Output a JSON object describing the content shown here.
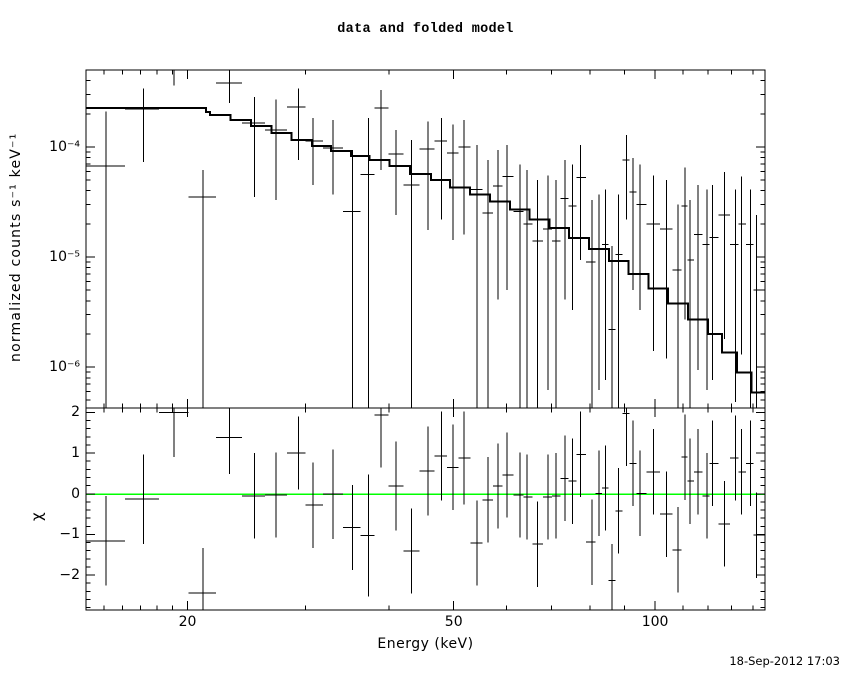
{
  "title": "data and folded model",
  "timestamp": "18-Sep-2012 17:03",
  "colors": {
    "foreground": "#000000",
    "background": "#ffffff",
    "model_line": "#000000",
    "zero_line": "#00ff00"
  },
  "x_axis": {
    "label": "Energy (keV)",
    "scale": "log",
    "lim": [
      14.1,
      146.0
    ],
    "major_ticks": [
      {
        "v": 20,
        "label": "20"
      },
      {
        "v": 50,
        "label": "50"
      },
      {
        "v": 100,
        "label": "100"
      }
    ],
    "minor_ticks": [
      15,
      16,
      17,
      18,
      19,
      30,
      40,
      60,
      70,
      80,
      90,
      110,
      120,
      130,
      140
    ]
  },
  "top_panel": {
    "ylabel": "normalized counts s⁻¹ keV⁻¹",
    "scale": "log",
    "lim": [
      4.25e-07,
      0.0005
    ],
    "major_ticks": [
      {
        "v": 0.0001,
        "label": "10⁻⁴"
      },
      {
        "v": 1e-05,
        "label": "10⁻⁵"
      },
      {
        "v": 1e-06,
        "label": "10⁻⁶"
      }
    ]
  },
  "bottom_panel": {
    "ylabel": "χ",
    "scale": "linear",
    "lim": [
      -2.86,
      2.11
    ],
    "major_ticks": [
      {
        "v": 2,
        "label": "2"
      },
      {
        "v": 1,
        "label": "1"
      },
      {
        "v": 0,
        "label": "0"
      },
      {
        "v": -1,
        "label": "−1"
      },
      {
        "v": -2,
        "label": "−2"
      }
    ],
    "minor_step": 0.2,
    "zero_line": 0
  },
  "chart_data": [
    {
      "type": "scatter",
      "name": "spectrum-data-with-folded-model",
      "x_scale": "log",
      "y_scale": "log",
      "xlim": [
        14.1,
        146.0
      ],
      "ylim": [
        4.25e-07,
        0.0005
      ],
      "energies_keV": [
        15.1,
        17.2,
        19.1,
        21.1,
        23.1,
        25.2,
        27.1,
        29.3,
        30.8,
        33.0,
        35.3,
        37.3,
        38.9,
        41.0,
        43.2,
        45.8,
        47.9,
        49.9,
        51.8,
        54.2,
        56.3,
        58.2,
        60.1,
        62.8,
        64.4,
        66.7,
        69.2,
        71.1,
        73.3,
        75.3,
        77.3,
        80.5,
        82.4,
        84.3,
        86.2,
        88.2,
        90.6,
        92.7,
        94.9,
        99.4,
        104.1,
        108.3,
        110.9,
        112.8,
        115.9,
        119.5,
        121.9,
        127.0,
        131.9,
        134.6,
        138.8,
        141.7
      ],
      "counts": [
        6.7e-05,
        0.00022,
        0.0005,
        3.5e-05,
        0.00038,
        0.000165,
        0.000143,
        0.00023,
        0.000113,
        9.8e-05,
        2.6e-05,
        5.6e-05,
        0.000226,
        8.6e-05,
        4.5e-05,
        9.6e-05,
        0.000113,
        8.8e-05,
        0.0001,
        4.1e-05,
        2.5e-05,
        4.4e-05,
        5.4e-05,
        2.6e-05,
        2e-05,
        1.4e-05,
        1.8e-05,
        1.4e-05,
        3.4e-05,
        2.9e-05,
        5.3e-05,
        9e-06,
        1.2e-05,
        1.3e-05,
        2.2e-06,
        1.05e-05,
        7.6e-05,
        3.9e-05,
        3e-05,
        2e-05,
        1.8e-05,
        7.6e-06,
        2.9e-05,
        9.4e-06,
        1.6e-05,
        1.3e-05,
        1.5e-05,
        2.4e-05,
        1.3e-05,
        2e-05,
        1.3e-05,
        5e-06
      ],
      "counts_err_hi": [
        0.00021,
        0.00034,
        0.0005,
        6.2e-05,
        0.0005,
        0.000285,
        0.00027,
        0.00034,
        0.000184,
        0.000176,
        9.4e-05,
        0.000184,
        0.00033,
        0.000143,
        0.000116,
        0.00017,
        0.000184,
        0.00016,
        0.000176,
        0.000104,
        7.6e-05,
        9.4e-05,
        0.000104,
        6.9e-05,
        6.2e-05,
        5e-05,
        5.5e-05,
        5e-05,
        7.6e-05,
        6.9e-05,
        0.000104,
        3.3e-05,
        3.7e-05,
        4.1e-05,
        1.26e-05,
        3.7e-05,
        0.000129,
        7.9e-05,
        6.9e-05,
        5.5e-05,
        5e-05,
        3e-05,
        6.5e-05,
        3.3e-05,
        4.5e-05,
        4.1e-05,
        4.5e-05,
        5.9e-05,
        4.1e-05,
        5.4e-05,
        4.1e-05,
        2.4e-05
      ],
      "counts_err_lo": [
        4e-07,
        7.3e-05,
        0.00036,
        4e-07,
        0.00025,
        3.5e-05,
        3.3e-05,
        7.6e-05,
        4.5e-05,
        3.7e-05,
        4e-07,
        4e-07,
        6.2e-05,
        2.4e-05,
        4e-07,
        1.76e-05,
        2.2e-05,
        1.43e-05,
        1.6e-05,
        4e-07,
        4e-07,
        4.1e-06,
        5e-06,
        4e-07,
        4e-07,
        4e-07,
        6.2e-07,
        4e-07,
        4.1e-06,
        3.3e-06,
        9.4e-06,
        4e-07,
        6.2e-07,
        7.6e-07,
        4e-07,
        4e-07,
        2.2e-05,
        5e-06,
        3.3e-06,
        1.4e-06,
        1.2e-06,
        4e-07,
        2.7e-06,
        4e-07,
        9.4e-07,
        6.2e-07,
        7.6e-07,
        1.8e-06,
        4.8e-07,
        1.3e-06,
        4e-07,
        4e-07
      ],
      "model_step_edges_keV": [
        14.1,
        21.3,
        21.6,
        23.2,
        24.9,
        26.7,
        28.6,
        30.7,
        32.8,
        35.1,
        37.4,
        40.1,
        43.0,
        46.2,
        49.4,
        52.9,
        56.7,
        60.7,
        64.9,
        69.5,
        74.4,
        79.7,
        85.3,
        91.3,
        97.7,
        104.6,
        112.0,
        119.9,
        125.9,
        132.5,
        139.4,
        146.0
      ],
      "model_values": [
        0.000226,
        0.000208,
        0.000195,
        0.000176,
        0.000155,
        0.000134,
        0.000116,
        0.000102,
        9.2e-05,
        8.3e-05,
        7.6e-05,
        6.7e-05,
        5.7e-05,
        5e-05,
        4.3e-05,
        3.7e-05,
        3.2e-05,
        2.7e-05,
        2.2e-05,
        1.83e-05,
        1.49e-05,
        1.18e-05,
        9.2e-06,
        7e-06,
        5.2e-06,
        3.8e-06,
        2.7e-06,
        2e-06,
        1.35e-06,
        8.9e-07,
        5.9e-07
      ]
    },
    {
      "type": "scatter",
      "name": "chi-residuals",
      "x_scale": "log",
      "y_scale": "linear",
      "xlim": [
        14.1,
        146.0
      ],
      "ylim": [
        -2.86,
        2.11
      ],
      "energies_keV": [
        15.1,
        17.2,
        19.1,
        21.1,
        23.1,
        25.2,
        27.1,
        29.3,
        30.8,
        33.0,
        35.3,
        37.3,
        38.9,
        41.0,
        43.2,
        45.8,
        47.9,
        49.9,
        51.8,
        54.2,
        56.3,
        58.2,
        60.1,
        62.8,
        64.4,
        66.7,
        69.2,
        71.1,
        73.3,
        75.3,
        77.3,
        80.5,
        82.4,
        84.3,
        86.2,
        88.2,
        90.6,
        92.7,
        94.9,
        99.4,
        104.1,
        108.3,
        110.9,
        112.8,
        115.9,
        119.5,
        121.9,
        127.0,
        131.9,
        134.6,
        138.8,
        141.7
      ],
      "chi": [
        -1.16,
        -0.13,
        2.0,
        -2.44,
        1.39,
        -0.05,
        -0.03,
        1.0,
        -0.28,
        -0.01,
        -0.83,
        -1.03,
        1.94,
        0.19,
        -1.41,
        0.56,
        0.93,
        0.65,
        0.88,
        -1.21,
        -0.15,
        0.19,
        0.46,
        -0.03,
        -0.08,
        -1.24,
        -0.08,
        -0.05,
        0.38,
        0.31,
        0.97,
        -1.19,
        0.01,
        0.14,
        -2.14,
        -0.42,
        1.98,
        0.75,
        0.01,
        0.54,
        -0.5,
        -1.38,
        0.9,
        0.31,
        0.54,
        -0.05,
        0.75,
        -0.74,
        0.88,
        0.54,
        0.75,
        -1.02
      ],
      "chi_err": [
        1.1,
        1.1,
        1.1,
        1.1,
        0.9,
        1.05,
        1.05,
        0.9,
        1.05,
        1.1,
        1.05,
        1.5,
        1.3,
        1.1,
        1.05,
        1.1,
        1.1,
        1.05,
        1.15,
        1.05,
        1.05,
        1.05,
        1.05,
        1.05,
        1.05,
        1.05,
        1.05,
        1.05,
        1.05,
        1.05,
        1.05,
        1.05,
        1.05,
        1.05,
        0.9,
        1.05,
        1.3,
        1.05,
        1.05,
        1.05,
        1.05,
        1.05,
        1.05,
        1.05,
        1.05,
        1.05,
        1.05,
        1.05,
        1.05,
        1.05,
        1.05,
        1.05
      ]
    }
  ]
}
